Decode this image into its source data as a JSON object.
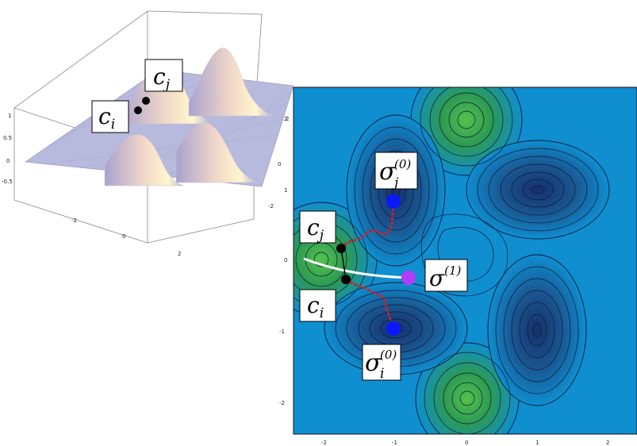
{
  "surface_plot": {
    "z_ticks": [
      "1",
      "0.5",
      "0",
      "-0.5"
    ],
    "y_ticks": [
      "-2",
      "0",
      "2"
    ],
    "x_ticks": [
      "-2",
      "0",
      "2"
    ],
    "labels": {
      "ci_base": "c",
      "ci_sub": "i",
      "cj_base": "c",
      "cj_sub": "j"
    }
  },
  "contour_plot": {
    "x_ticks": [
      "-2",
      "-1",
      "0",
      "1",
      "2"
    ],
    "y_ticks": [
      "2",
      "1",
      "0",
      "-1",
      "-2"
    ],
    "labels": {
      "sigma_j0": {
        "base": "σ",
        "sub": "j",
        "sup": "(0)"
      },
      "sigma_i0": {
        "base": "σ",
        "sub": "i",
        "sup": "(0)"
      },
      "sigma_1": {
        "base": "σ",
        "sup": "(1)"
      },
      "cj": {
        "base": "c",
        "sub": "j"
      },
      "ci": {
        "base": "c",
        "sub": "i"
      }
    }
  },
  "colors": {
    "background": "#0f8ed0",
    "deep_well": "#1a3b7a",
    "peak": "#3ba83f",
    "contour_line": "#0a1a35",
    "path_red": "#c0262c",
    "path_white": "#ffffff",
    "point_blue": "#0a18ff",
    "point_purple": "#b43cff",
    "point_black": "#000000"
  }
}
